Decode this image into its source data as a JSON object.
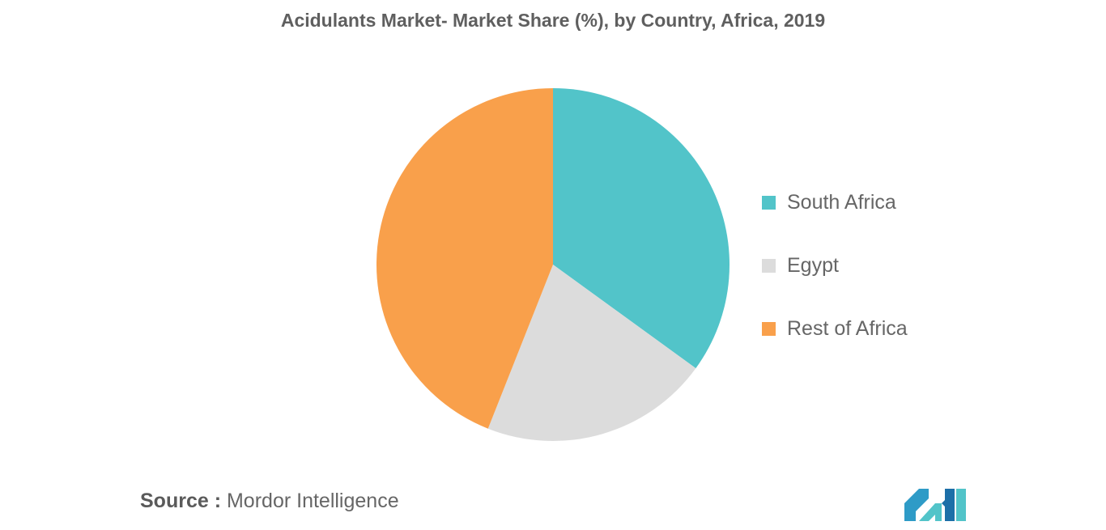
{
  "chart_data": {
    "type": "pie",
    "title": "Acidulants Market- Market Share (%), by Country, Africa, 2019",
    "categories": [
      "South Africa",
      "Egypt",
      "Rest of Africa"
    ],
    "values": [
      35,
      21,
      44
    ],
    "colors": [
      "#52c4c9",
      "#dcdcdc",
      "#f9a04b"
    ],
    "legend_position": "right"
  },
  "source": {
    "prefix": "Source :",
    "text": "Mordor Intelligence"
  },
  "logo": {
    "icon": "mordor-intelligence-logo",
    "colors": [
      "#2e9bc7",
      "#52c4c9",
      "#1c6fa8"
    ]
  }
}
